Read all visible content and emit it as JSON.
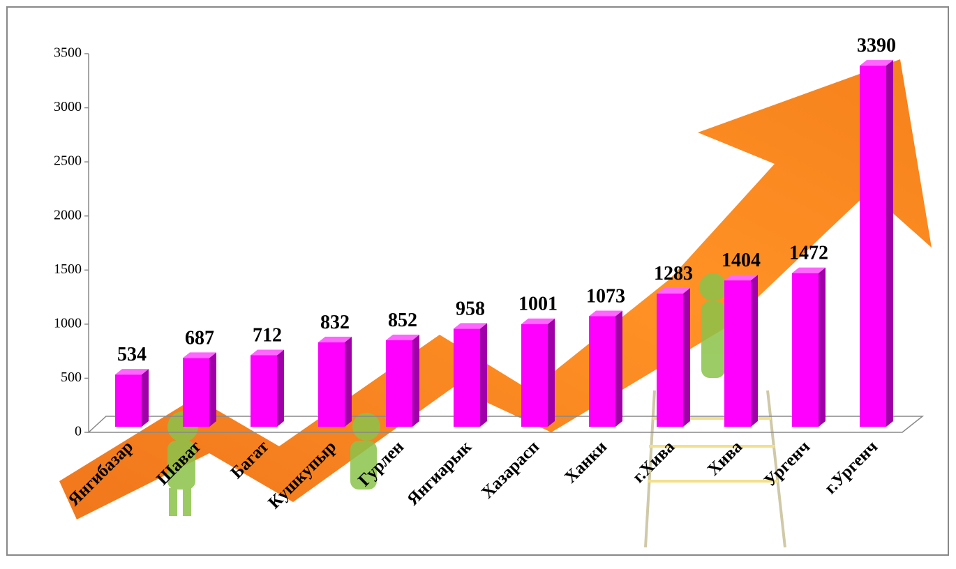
{
  "chart_data": {
    "type": "bar",
    "categories": [
      "Янгибазар",
      "Шават",
      "Багат",
      "Кушкупыр",
      "Гурлен",
      "Янгиарык",
      "Хазарасп",
      "Ханки",
      "г.Хива",
      "Хива",
      "Ургенч",
      "г.Ургенч"
    ],
    "values": [
      534,
      687,
      712,
      832,
      852,
      958,
      1001,
      1073,
      1283,
      1404,
      1472,
      3390
    ],
    "color": "#ff00ff",
    "ylim": [
      0,
      3500
    ],
    "yticks": [
      0,
      500,
      1000,
      1500,
      2000,
      2500,
      3000,
      3500
    ],
    "grid": false
  }
}
